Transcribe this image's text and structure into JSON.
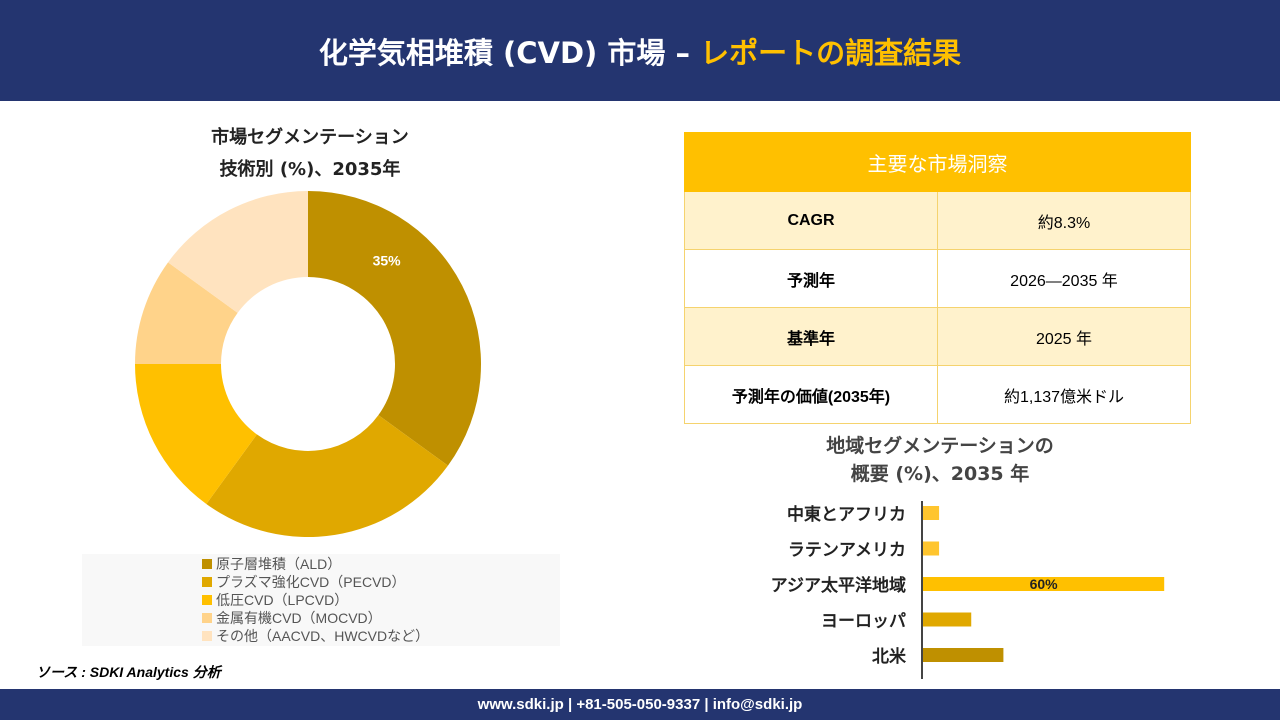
{
  "header": {
    "title_main": "化学気相堆積 (CVD) 市場 –",
    "title_accent": "レポートの調査結果"
  },
  "footer": {
    "contact": "www.sdki.jp | +81-505-050-9337 | info@sdki.jp"
  },
  "source": "ソース : SDKI Analytics 分析",
  "insights": {
    "title": "主要な市場洞察",
    "rows": [
      {
        "label": "CAGR",
        "value": "約8.3%"
      },
      {
        "label": "予測年",
        "value": "2026—2035 年"
      },
      {
        "label": "基準年",
        "value": "2025 年"
      },
      {
        "label": "予測年の価値(2035年)",
        "value": "約1,137億米ドル"
      }
    ]
  },
  "chart_data": [
    {
      "type": "pie",
      "title_line1": "市場セグメンテーション",
      "title_line2": "技術別 (%)、2035年",
      "categories": [
        "原子層堆積（ALD）",
        "プラズマ強化CVD（PECVD）",
        "低圧CVD（LPCVD）",
        "金属有機CVD（MOCVD）",
        "その他（AACVD、HWCVDなど）"
      ],
      "values": [
        35,
        25,
        15,
        10,
        15
      ],
      "data_labels": [
        "35%",
        "",
        "",
        "",
        ""
      ],
      "colors": [
        "#BF9000",
        "#E0A800",
        "#FFC000",
        "#FFD38A",
        "#FFE3BF"
      ]
    },
    {
      "type": "bar",
      "orientation": "horizontal",
      "title_line1": "地域セグメンテーションの",
      "title_line2": "概要 (%)、2035 年",
      "categories": [
        "中東とアフリカ",
        "ラテンアメリカ",
        "アジア太平洋地域",
        "ヨーロッパ",
        "北米"
      ],
      "values": [
        4,
        4,
        60,
        12,
        20
      ],
      "data_labels": [
        "",
        "",
        "60%",
        "",
        ""
      ],
      "colors": [
        "#FFC52E",
        "#FFC52E",
        "#FFC000",
        "#E0A800",
        "#BF9000"
      ]
    }
  ]
}
